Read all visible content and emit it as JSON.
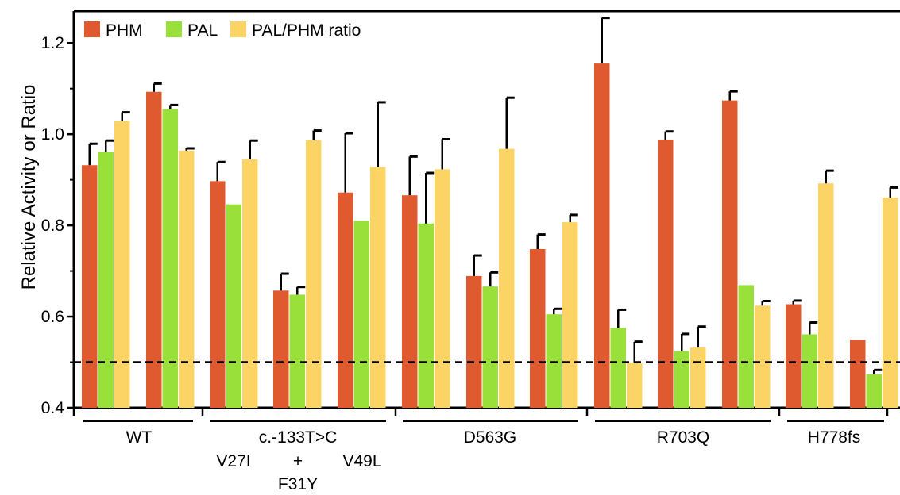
{
  "chart_data": {
    "type": "bar",
    "title": "",
    "xlabel": "",
    "ylabel": "Relative Activity or Ratio",
    "ylim": [
      0.4,
      1.27
    ],
    "yticks": [
      "0.4",
      "0.6",
      "0.8",
      "1.0",
      "1.2"
    ],
    "reference_line": 0.5,
    "legend_position": "top-left",
    "series": [
      {
        "name": "PHM",
        "color": "#e05a2f",
        "values": [
          0.932,
          1.093,
          0.897,
          0.657,
          0.872,
          0.866,
          0.689,
          0.748,
          1.155,
          0.988,
          1.074,
          0.627,
          0.549
        ],
        "errors": [
          0.047,
          0.018,
          0.042,
          0.037,
          0.13,
          0.085,
          0.045,
          0.032,
          0.1,
          0.018,
          0.02,
          0.008,
          0.0
        ]
      },
      {
        "name": "PAL",
        "color": "#99e03a",
        "values": [
          0.961,
          1.055,
          0.846,
          0.648,
          0.81,
          0.804,
          0.666,
          0.605,
          0.575,
          0.524,
          0.669,
          0.561,
          0.473
        ],
        "errors": [
          0.025,
          0.009,
          0.0,
          0.017,
          0.0,
          0.111,
          0.031,
          0.012,
          0.04,
          0.038,
          0.0,
          0.026,
          0.01
        ]
      },
      {
        "name": "PAL/PHM ratio",
        "color": "#fcd466",
        "values": [
          1.029,
          0.964,
          0.945,
          0.987,
          0.928,
          0.923,
          0.968,
          0.807,
          0.499,
          0.532,
          0.624,
          0.892,
          0.861
        ],
        "errors": [
          0.019,
          0.005,
          0.041,
          0.021,
          0.142,
          0.066,
          0.112,
          0.016,
          0.046,
          0.046,
          0.01,
          0.028,
          0.022
        ]
      }
    ],
    "groups": [
      {
        "label_lines": [
          "WT"
        ],
        "bars": 2
      },
      {
        "label_lines": [
          "c.-133T>C"
        ],
        "sublabels": [
          "V27I",
          "+\nF31Y",
          "V49L"
        ],
        "bars": 3
      },
      {
        "label_lines": [
          "D563G"
        ],
        "bars": 3
      },
      {
        "label_lines": [
          "R703Q"
        ],
        "bars": 3
      },
      {
        "label_lines": [
          "H778fs"
        ],
        "bars": 2
      }
    ],
    "sublabel_text": {
      "v27i": "V27I",
      "plus": "+",
      "f31y": "F31Y",
      "v49l": "V49L"
    }
  }
}
